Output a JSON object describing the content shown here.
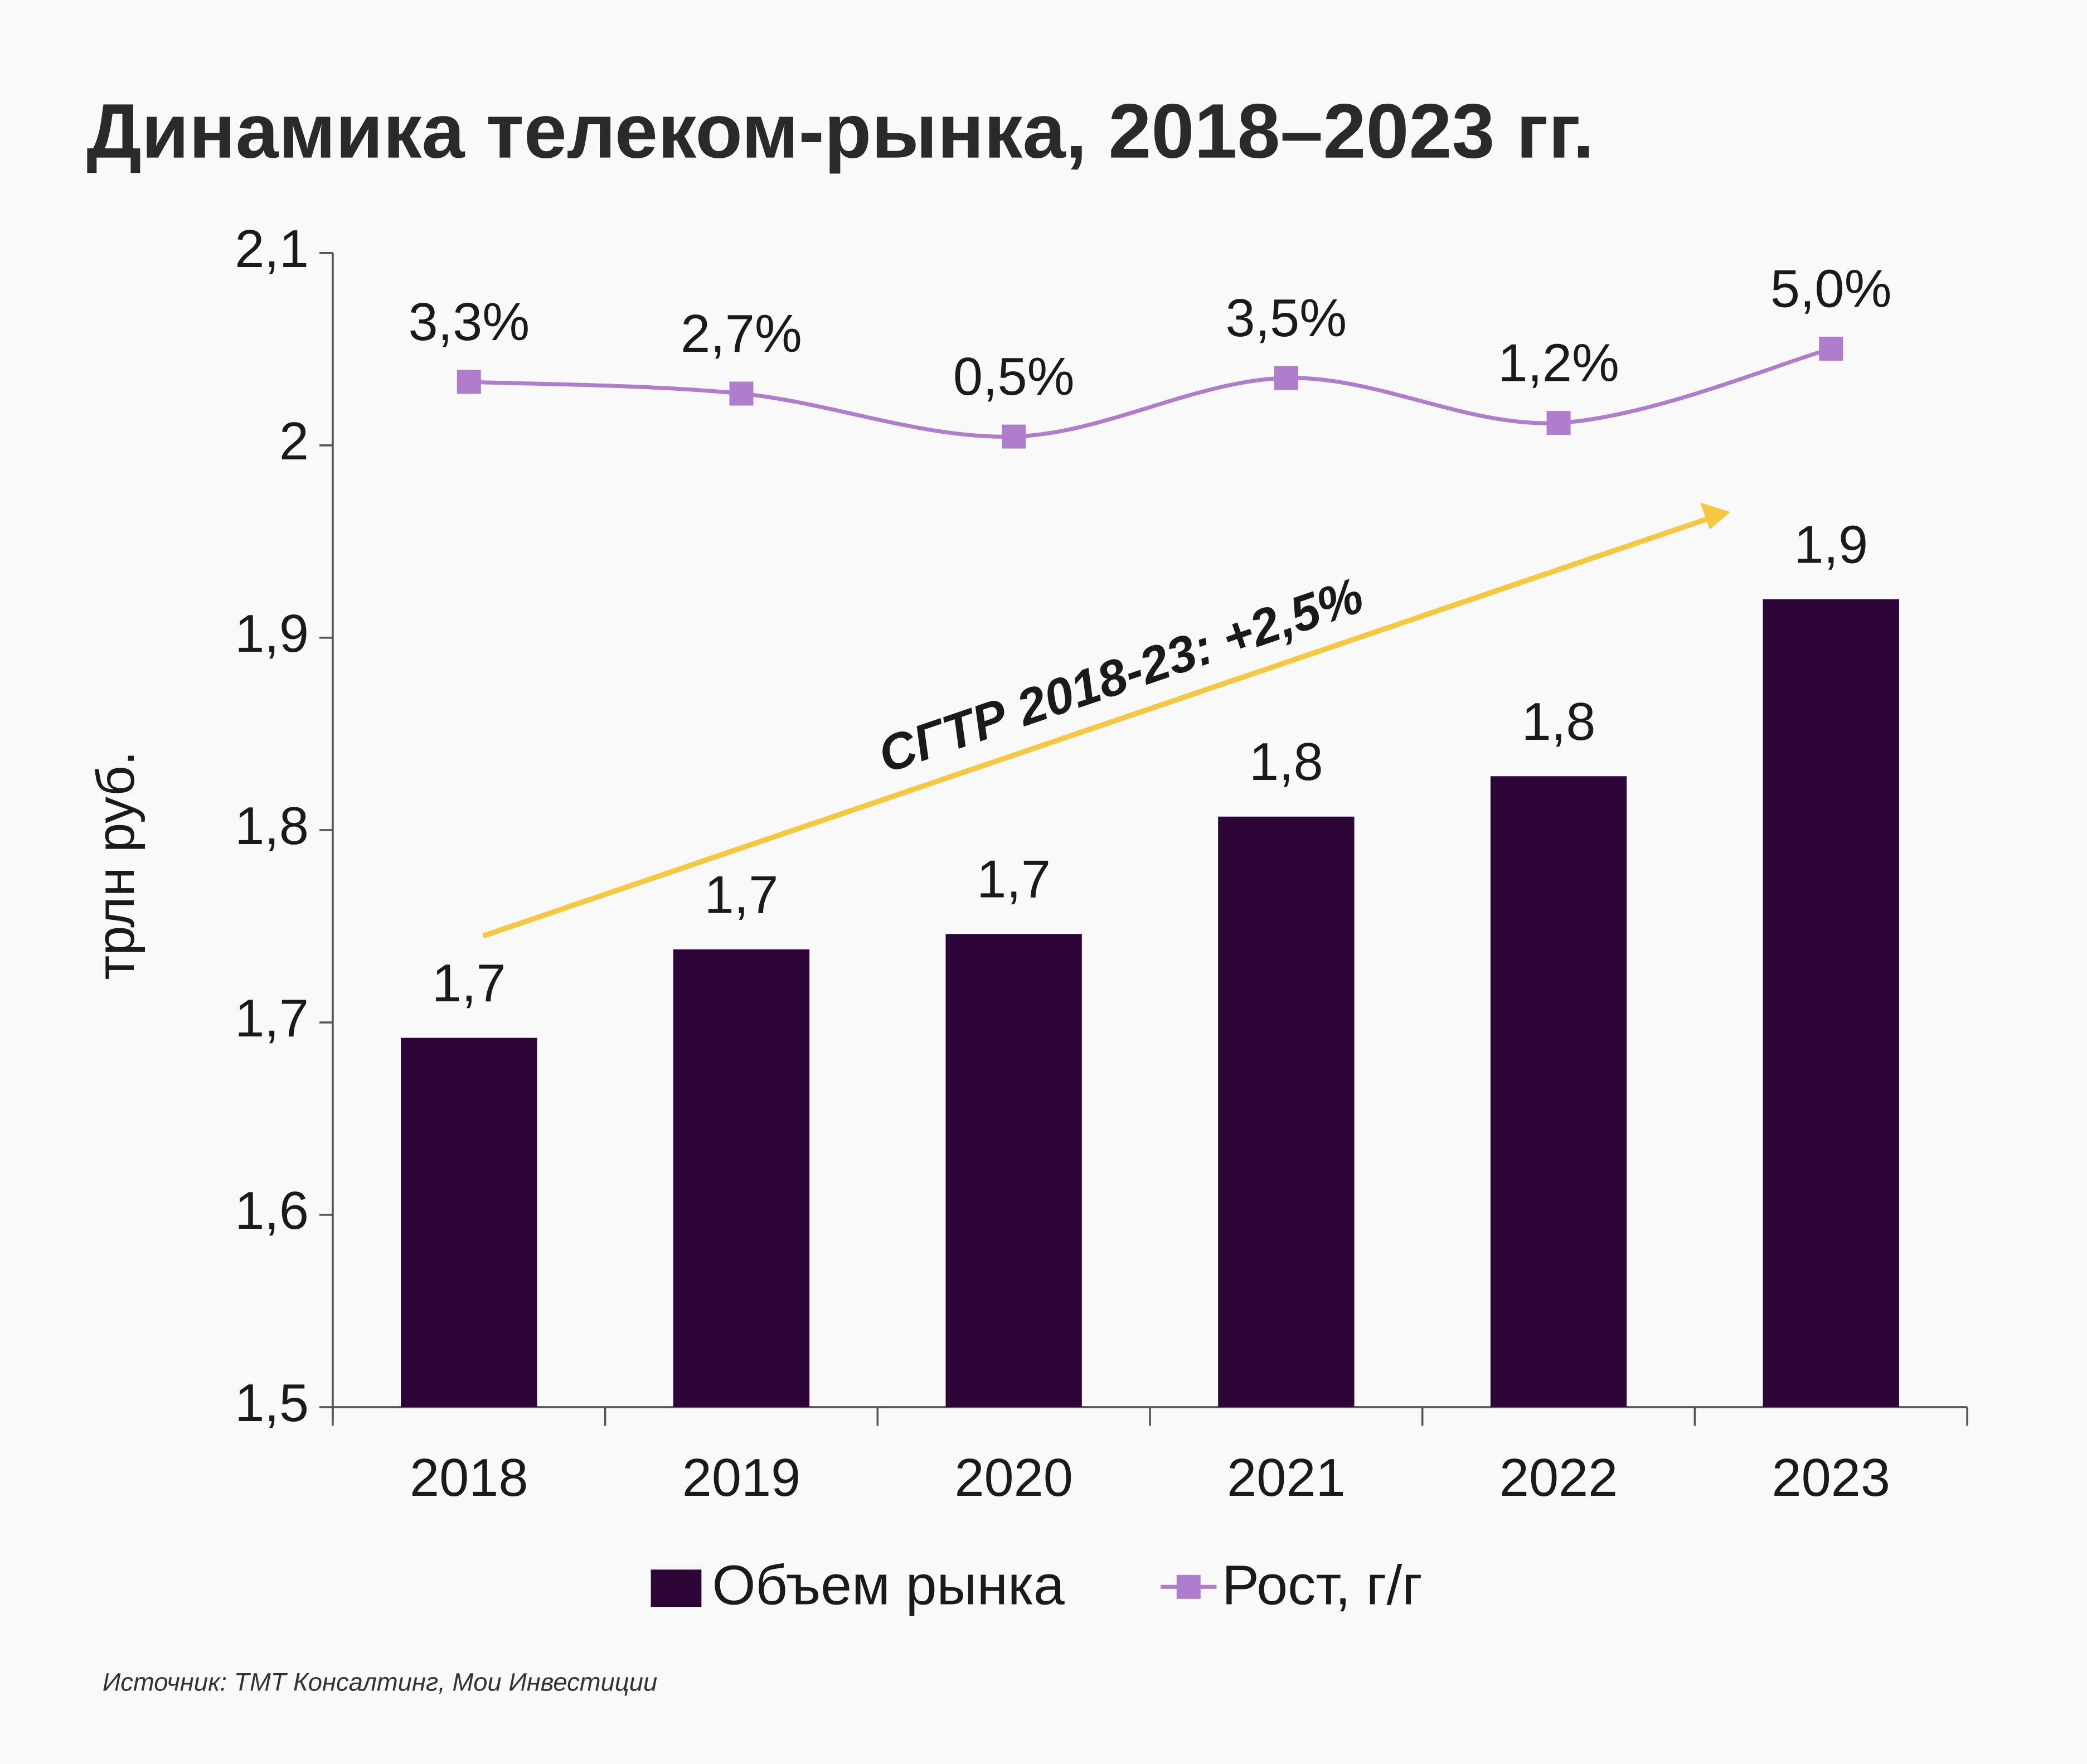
{
  "chart_data": {
    "type": "bar",
    "title": "Динамика телеком-рынка, 2018–2023 гг.",
    "y_label": "трлн руб.",
    "annotation": "CГТР 2018-23: +2,5%",
    "source": "Источник: ТМТ Консалтинг, Мои Инвестиции",
    "categories": [
      "2018",
      "2019",
      "2020",
      "2021",
      "2022",
      "2023"
    ],
    "ylim": [
      1.5,
      2.1
    ],
    "yticks": [
      {
        "value": 1.5,
        "label": "1,5"
      },
      {
        "value": 1.6,
        "label": "1,6"
      },
      {
        "value": 1.7,
        "label": "1,7"
      },
      {
        "value": 1.8,
        "label": "1,8"
      },
      {
        "value": 1.9,
        "label": "1,9"
      },
      2,
      {
        "value": 2.1,
        "label": "2,1"
      }
    ],
    "y2lim": [
      -49.2,
      9.9
    ],
    "series": [
      {
        "name": "Объем рынка",
        "type": "bar",
        "color": "#2d0536",
        "values": [
          1.692,
          1.738,
          1.746,
          1.807,
          1.828,
          1.92
        ],
        "value_labels": [
          "1,7",
          "1,7",
          "1,7",
          "1,8",
          "1,8",
          "1,9"
        ]
      },
      {
        "name": "Рост, г/г",
        "type": "line",
        "axis": "y2",
        "color": "#b07ccc",
        "values": [
          3.3,
          2.7,
          0.5,
          3.5,
          1.2,
          5.0
        ],
        "value_labels": [
          "3,3%",
          "2,7%",
          "0,5%",
          "3,5%",
          "1,2%",
          "5,0%"
        ]
      }
    ]
  }
}
